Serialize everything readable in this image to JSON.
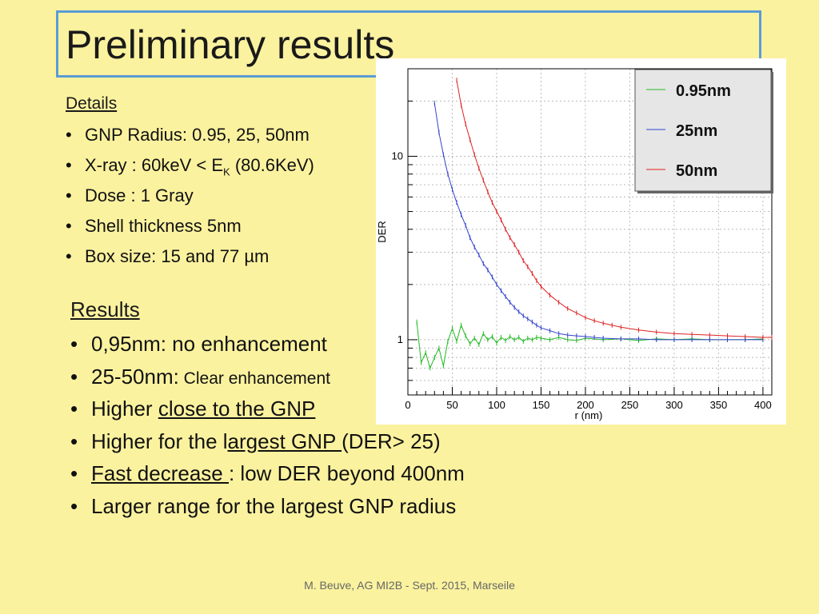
{
  "title": "Preliminary results",
  "details": {
    "heading": "Details",
    "items": [
      "GNP Radius:  0.95, 25, 50nm",
      {
        "before": "X-ray : 60keV < E",
        "sub": "K",
        "after": " (80.6KeV)"
      },
      "Dose : 1 Gray",
      "Shell thickness 5nm",
      "Box size:   15 and 77 µm"
    ]
  },
  "results": {
    "heading": "Results",
    "items": [
      {
        "text": "0,95nm: no enhancement"
      },
      {
        "text": "25-50nm:",
        "small": " Clear enhancement"
      },
      {
        "before": "Higher ",
        "underline": "close to the GNP",
        "after": ""
      },
      {
        "before": "Higher  for the l",
        "underline": "argest GNP ",
        "after": "(DER> 25)"
      },
      {
        "before": "",
        "underline": "Fast decrease ",
        "after": ": low DER beyond 400nm"
      },
      {
        "text": "Larger range for the largest GNP  radius"
      }
    ]
  },
  "footer": "M. Beuve,  AG MI2B - Sept. 2015, Marseile",
  "chart_data": {
    "type": "line",
    "xlabel": "r (nm)",
    "ylabel": "DER",
    "xlim": [
      0,
      410
    ],
    "ylim": [
      0.5,
      30
    ],
    "yscale": "log",
    "xticks": [
      0,
      50,
      100,
      150,
      200,
      250,
      300,
      350,
      400
    ],
    "yticks": [
      1,
      10
    ],
    "grid": true,
    "legend_position": "top-right",
    "series": [
      {
        "name": "0.95nm",
        "color": "#22bb22",
        "x": [
          10,
          15,
          20,
          25,
          30,
          35,
          40,
          45,
          50,
          55,
          60,
          65,
          70,
          75,
          80,
          85,
          90,
          95,
          100,
          105,
          110,
          115,
          120,
          125,
          130,
          135,
          140,
          145,
          150,
          160,
          170,
          180,
          190,
          200,
          220,
          240,
          260,
          280,
          300,
          320,
          340,
          360,
          380,
          400
        ],
        "y": [
          1.25,
          0.75,
          0.85,
          0.7,
          0.8,
          0.9,
          0.72,
          0.98,
          1.15,
          0.98,
          1.2,
          1.05,
          0.95,
          1.02,
          0.94,
          1.08,
          1.0,
          1.04,
          0.96,
          1.03,
          0.99,
          1.04,
          1.0,
          1.03,
          0.98,
          1.02,
          1.0,
          1.03,
          1.02,
          1.0,
          1.03,
          1.0,
          0.99,
          1.02,
          1.0,
          1.01,
          0.99,
          1.01,
          1.0,
          1.01,
          1.0,
          1.0,
          1.0,
          1.01
        ]
      },
      {
        "name": "25nm",
        "color": "#3344cc",
        "x": [
          30,
          35,
          40,
          45,
          50,
          55,
          60,
          65,
          70,
          75,
          80,
          85,
          90,
          95,
          100,
          105,
          110,
          115,
          120,
          125,
          130,
          135,
          140,
          145,
          150,
          160,
          170,
          180,
          190,
          200,
          210,
          220,
          240,
          260,
          280,
          300,
          320,
          340,
          360,
          380,
          400
        ],
        "y": [
          19.5,
          13.5,
          10.2,
          8.0,
          6.6,
          5.6,
          4.8,
          4.2,
          3.6,
          3.2,
          2.9,
          2.6,
          2.4,
          2.2,
          2.0,
          1.85,
          1.72,
          1.6,
          1.5,
          1.42,
          1.35,
          1.3,
          1.25,
          1.2,
          1.16,
          1.12,
          1.08,
          1.06,
          1.05,
          1.04,
          1.03,
          1.02,
          1.01,
          1.01,
          1.0,
          1.0,
          1.0,
          1.0,
          1.0,
          1.0,
          1.0
        ]
      },
      {
        "name": "50nm",
        "color": "#dd2222",
        "x": [
          55,
          60,
          65,
          70,
          75,
          80,
          85,
          90,
          95,
          100,
          105,
          110,
          115,
          120,
          125,
          130,
          135,
          140,
          145,
          150,
          160,
          170,
          180,
          190,
          200,
          210,
          220,
          230,
          240,
          260,
          280,
          300,
          320,
          340,
          360,
          380,
          400,
          410
        ],
        "y": [
          26,
          19,
          15,
          12.3,
          10.2,
          8.6,
          7.4,
          6.4,
          5.6,
          5.0,
          4.5,
          4.0,
          3.6,
          3.3,
          3.0,
          2.7,
          2.5,
          2.3,
          2.1,
          1.95,
          1.75,
          1.6,
          1.48,
          1.4,
          1.32,
          1.27,
          1.23,
          1.2,
          1.17,
          1.13,
          1.1,
          1.08,
          1.07,
          1.06,
          1.05,
          1.04,
          1.03,
          1.03
        ]
      }
    ]
  }
}
